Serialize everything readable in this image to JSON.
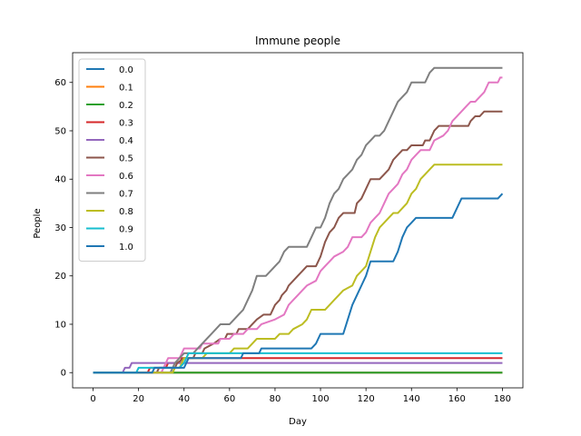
{
  "chart_data": {
    "type": "line",
    "title": "Immune people",
    "xlabel": "Day",
    "ylabel": "People",
    "xlim": [
      -9,
      189
    ],
    "ylim": [
      -3.15,
      66.15
    ],
    "xticks": [
      0,
      20,
      40,
      60,
      80,
      100,
      120,
      140,
      160,
      180
    ],
    "yticks": [
      0,
      10,
      20,
      30,
      40,
      50,
      60
    ],
    "grid": false,
    "legend": "top-left",
    "series": [
      {
        "name": "0.0",
        "color": "#1f77b4",
        "points": [
          [
            0,
            0
          ],
          [
            180,
            0
          ]
        ]
      },
      {
        "name": "0.1",
        "color": "#ff7f0e",
        "points": [
          [
            0,
            0
          ],
          [
            180,
            0
          ]
        ]
      },
      {
        "name": "0.2",
        "color": "#2ca02c",
        "points": [
          [
            0,
            0
          ],
          [
            180,
            0
          ]
        ]
      },
      {
        "name": "0.3",
        "color": "#d62728",
        "points": [
          [
            0,
            0
          ],
          [
            24,
            0
          ],
          [
            25,
            1
          ],
          [
            32,
            1
          ],
          [
            33,
            2
          ],
          [
            38,
            2
          ],
          [
            39,
            3
          ],
          [
            180,
            3
          ]
        ]
      },
      {
        "name": "0.4",
        "color": "#9467bd",
        "points": [
          [
            0,
            0
          ],
          [
            13,
            0
          ],
          [
            14,
            1
          ],
          [
            16,
            1
          ],
          [
            17,
            2
          ],
          [
            180,
            2
          ]
        ]
      },
      {
        "name": "0.5",
        "color": "#8c564b",
        "points": [
          [
            0,
            0
          ],
          [
            28,
            0
          ],
          [
            29,
            1
          ],
          [
            36,
            1
          ],
          [
            37,
            2
          ],
          [
            40,
            3
          ],
          [
            44,
            3
          ],
          [
            45,
            4
          ],
          [
            48,
            4
          ],
          [
            49,
            5
          ],
          [
            53,
            6
          ],
          [
            56,
            7
          ],
          [
            58,
            7
          ],
          [
            59,
            8
          ],
          [
            63,
            8
          ],
          [
            64,
            9
          ],
          [
            68,
            9
          ],
          [
            70,
            10
          ],
          [
            72,
            11
          ],
          [
            75,
            12
          ],
          [
            78,
            12
          ],
          [
            80,
            14
          ],
          [
            82,
            15
          ],
          [
            83,
            16
          ],
          [
            85,
            17
          ],
          [
            86,
            18
          ],
          [
            88,
            19
          ],
          [
            90,
            20
          ],
          [
            92,
            21
          ],
          [
            94,
            22
          ],
          [
            98,
            22
          ],
          [
            100,
            24
          ],
          [
            102,
            27
          ],
          [
            104,
            29
          ],
          [
            106,
            30
          ],
          [
            108,
            32
          ],
          [
            110,
            33
          ],
          [
            115,
            33
          ],
          [
            116,
            35
          ],
          [
            118,
            36
          ],
          [
            120,
            38
          ],
          [
            122,
            40
          ],
          [
            126,
            40
          ],
          [
            128,
            41
          ],
          [
            130,
            42
          ],
          [
            132,
            44
          ],
          [
            134,
            45
          ],
          [
            136,
            46
          ],
          [
            138,
            46
          ],
          [
            140,
            47
          ],
          [
            145,
            47
          ],
          [
            146,
            48
          ],
          [
            148,
            48
          ],
          [
            150,
            50
          ],
          [
            152,
            51
          ],
          [
            165,
            51
          ],
          [
            166,
            52
          ],
          [
            168,
            53
          ],
          [
            170,
            53
          ],
          [
            172,
            54
          ],
          [
            180,
            54
          ]
        ]
      },
      {
        "name": "0.6",
        "color": "#e377c2",
        "points": [
          [
            0,
            0
          ],
          [
            30,
            0
          ],
          [
            31,
            1
          ],
          [
            32,
            2
          ],
          [
            33,
            3
          ],
          [
            38,
            3
          ],
          [
            39,
            4
          ],
          [
            40,
            5
          ],
          [
            47,
            5
          ],
          [
            48,
            6
          ],
          [
            55,
            6
          ],
          [
            56,
            7
          ],
          [
            60,
            7
          ],
          [
            62,
            8
          ],
          [
            66,
            8
          ],
          [
            68,
            9
          ],
          [
            72,
            9
          ],
          [
            74,
            10
          ],
          [
            80,
            11
          ],
          [
            84,
            12
          ],
          [
            86,
            14
          ],
          [
            88,
            15
          ],
          [
            90,
            16
          ],
          [
            92,
            17
          ],
          [
            94,
            18
          ],
          [
            98,
            19
          ],
          [
            100,
            21
          ],
          [
            102,
            22
          ],
          [
            104,
            23
          ],
          [
            106,
            24
          ],
          [
            110,
            25
          ],
          [
            112,
            26
          ],
          [
            114,
            28
          ],
          [
            118,
            28
          ],
          [
            120,
            29
          ],
          [
            122,
            31
          ],
          [
            124,
            32
          ],
          [
            126,
            33
          ],
          [
            128,
            35
          ],
          [
            130,
            37
          ],
          [
            132,
            38
          ],
          [
            134,
            39
          ],
          [
            136,
            41
          ],
          [
            138,
            42
          ],
          [
            140,
            44
          ],
          [
            142,
            45
          ],
          [
            144,
            46
          ],
          [
            148,
            46
          ],
          [
            150,
            48
          ],
          [
            154,
            49
          ],
          [
            156,
            50
          ],
          [
            158,
            52
          ],
          [
            160,
            53
          ],
          [
            162,
            54
          ],
          [
            164,
            55
          ],
          [
            166,
            56
          ],
          [
            168,
            56
          ],
          [
            170,
            57
          ],
          [
            172,
            58
          ],
          [
            174,
            60
          ],
          [
            178,
            60
          ],
          [
            179,
            61
          ],
          [
            180,
            61
          ]
        ]
      },
      {
        "name": "0.7",
        "color": "#7f7f7f",
        "points": [
          [
            0,
            0
          ],
          [
            34,
            0
          ],
          [
            35,
            1
          ],
          [
            36,
            2
          ],
          [
            38,
            3
          ],
          [
            40,
            4
          ],
          [
            44,
            4
          ],
          [
            46,
            5
          ],
          [
            48,
            6
          ],
          [
            50,
            7
          ],
          [
            52,
            8
          ],
          [
            54,
            9
          ],
          [
            56,
            10
          ],
          [
            60,
            10
          ],
          [
            62,
            11
          ],
          [
            64,
            12
          ],
          [
            66,
            13
          ],
          [
            68,
            15
          ],
          [
            70,
            17
          ],
          [
            72,
            20
          ],
          [
            76,
            20
          ],
          [
            78,
            21
          ],
          [
            80,
            22
          ],
          [
            82,
            23
          ],
          [
            84,
            25
          ],
          [
            86,
            26
          ],
          [
            94,
            26
          ],
          [
            96,
            28
          ],
          [
            98,
            30
          ],
          [
            100,
            30
          ],
          [
            102,
            32
          ],
          [
            104,
            35
          ],
          [
            106,
            37
          ],
          [
            108,
            38
          ],
          [
            110,
            40
          ],
          [
            112,
            41
          ],
          [
            114,
            42
          ],
          [
            116,
            44
          ],
          [
            118,
            45
          ],
          [
            120,
            47
          ],
          [
            122,
            48
          ],
          [
            124,
            49
          ],
          [
            126,
            49
          ],
          [
            128,
            50
          ],
          [
            130,
            52
          ],
          [
            132,
            54
          ],
          [
            134,
            56
          ],
          [
            136,
            57
          ],
          [
            138,
            58
          ],
          [
            140,
            60
          ],
          [
            146,
            60
          ],
          [
            148,
            62
          ],
          [
            150,
            63
          ],
          [
            180,
            63
          ]
        ]
      },
      {
        "name": "0.8",
        "color": "#bcbd22",
        "points": [
          [
            0,
            0
          ],
          [
            35,
            0
          ],
          [
            36,
            1
          ],
          [
            38,
            1
          ],
          [
            39,
            2
          ],
          [
            40,
            3
          ],
          [
            48,
            3
          ],
          [
            50,
            4
          ],
          [
            60,
            4
          ],
          [
            62,
            5
          ],
          [
            68,
            5
          ],
          [
            70,
            6
          ],
          [
            72,
            7
          ],
          [
            80,
            7
          ],
          [
            82,
            8
          ],
          [
            86,
            8
          ],
          [
            88,
            9
          ],
          [
            92,
            10
          ],
          [
            94,
            11
          ],
          [
            96,
            13
          ],
          [
            102,
            13
          ],
          [
            104,
            14
          ],
          [
            106,
            15
          ],
          [
            108,
            16
          ],
          [
            110,
            17
          ],
          [
            114,
            18
          ],
          [
            116,
            20
          ],
          [
            118,
            21
          ],
          [
            120,
            22
          ],
          [
            122,
            25
          ],
          [
            124,
            28
          ],
          [
            126,
            30
          ],
          [
            128,
            31
          ],
          [
            130,
            32
          ],
          [
            132,
            33
          ],
          [
            134,
            33
          ],
          [
            136,
            34
          ],
          [
            138,
            35
          ],
          [
            140,
            37
          ],
          [
            142,
            38
          ],
          [
            144,
            40
          ],
          [
            146,
            41
          ],
          [
            148,
            42
          ],
          [
            150,
            43
          ],
          [
            180,
            43
          ]
        ]
      },
      {
        "name": "0.9",
        "color": "#17becf",
        "points": [
          [
            0,
            0
          ],
          [
            19,
            0
          ],
          [
            20,
            1
          ],
          [
            38,
            1
          ],
          [
            40,
            2
          ],
          [
            41,
            3
          ],
          [
            42,
            4
          ],
          [
            180,
            4
          ]
        ]
      },
      {
        "name": "1.0",
        "color": "#1f77b4",
        "points": [
          [
            0,
            0
          ],
          [
            26,
            0
          ],
          [
            27,
            1
          ],
          [
            40,
            1
          ],
          [
            41,
            2
          ],
          [
            42,
            3
          ],
          [
            65,
            3
          ],
          [
            66,
            4
          ],
          [
            73,
            4
          ],
          [
            74,
            5
          ],
          [
            96,
            5
          ],
          [
            98,
            6
          ],
          [
            100,
            8
          ],
          [
            110,
            8
          ],
          [
            112,
            11
          ],
          [
            114,
            14
          ],
          [
            116,
            16
          ],
          [
            118,
            18
          ],
          [
            120,
            20
          ],
          [
            122,
            23
          ],
          [
            132,
            23
          ],
          [
            134,
            25
          ],
          [
            136,
            28
          ],
          [
            138,
            30
          ],
          [
            140,
            31
          ],
          [
            142,
            32
          ],
          [
            158,
            32
          ],
          [
            160,
            34
          ],
          [
            162,
            36
          ],
          [
            178,
            36
          ],
          [
            180,
            37
          ]
        ]
      }
    ]
  }
}
